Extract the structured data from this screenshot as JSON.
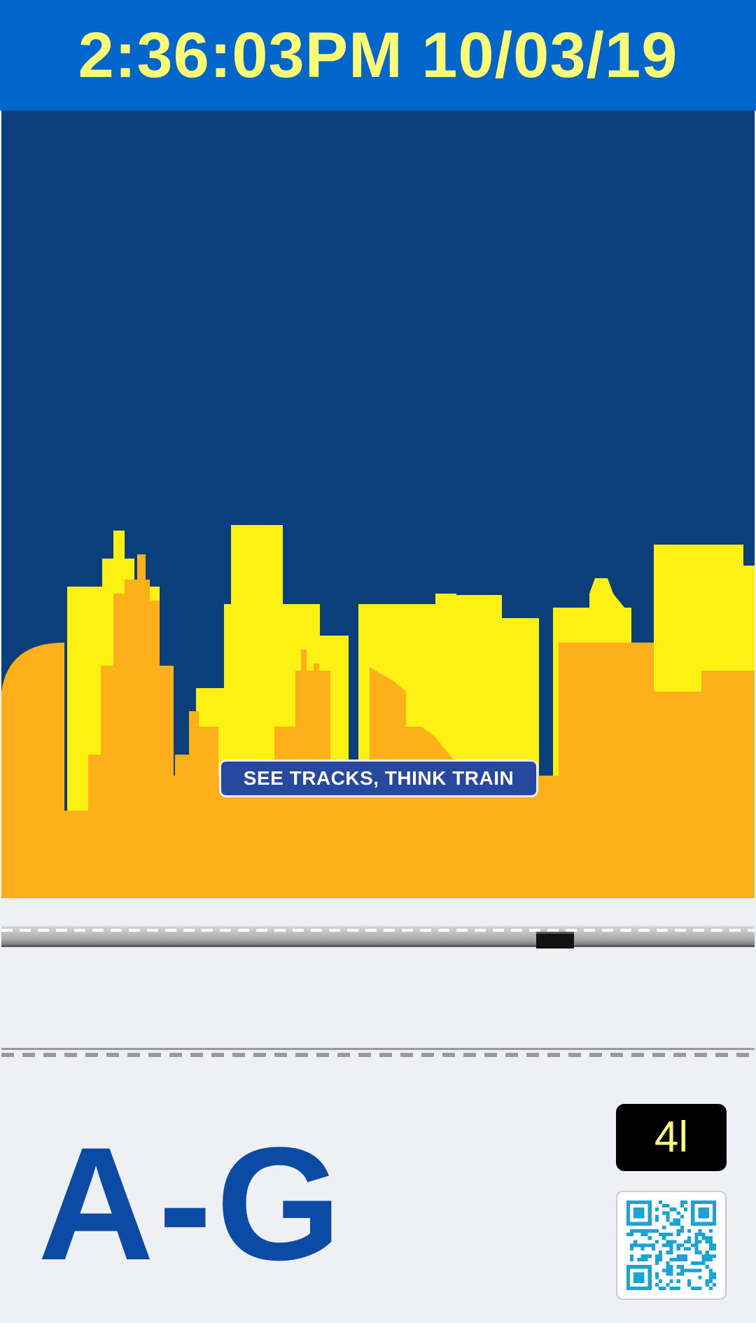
{
  "header": {
    "clock": "2:36:03PM 10/03/19"
  },
  "ad": {
    "slogan": "SEE TRACKS, THINK TRAIN",
    "colors": {
      "sky": "#0a3f7b",
      "front_buildings": "#fdb01a",
      "back_buildings": "#fdf013",
      "slogan_bg": "#27489f"
    }
  },
  "footer": {
    "line_label": "A-G",
    "route_badge": "4l",
    "qr_icon": "qr-code-icon",
    "colors": {
      "line_label": "#0b4aa5",
      "badge_bg": "#000000",
      "badge_text": "#fdfb73",
      "qr": "#1aa3d6"
    }
  }
}
